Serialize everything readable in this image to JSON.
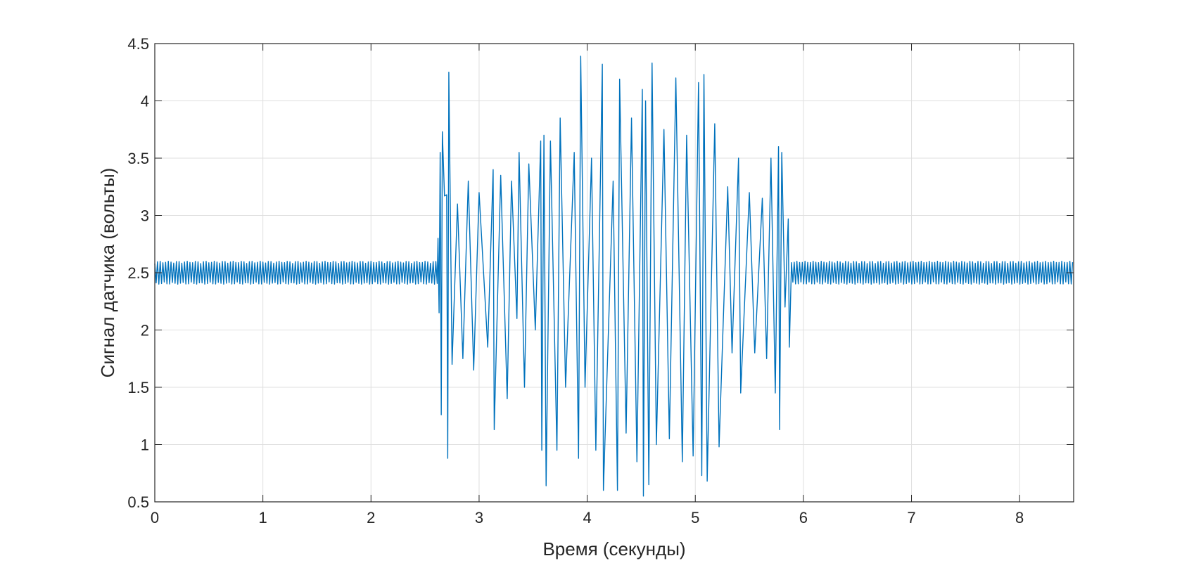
{
  "chart_data": {
    "type": "line",
    "title": "",
    "xlabel": "Время (секунды)",
    "ylabel": "Сигнал датчика (вольты)",
    "xlim": [
      0,
      8.5
    ],
    "ylim": [
      0.5,
      4.5
    ],
    "xticks": [
      0,
      1,
      2,
      3,
      4,
      5,
      6,
      7,
      8
    ],
    "xtick_labels": [
      "0",
      "1",
      "2",
      "3",
      "4",
      "5",
      "6",
      "7",
      "8"
    ],
    "yticks": [
      0.5,
      1,
      1.5,
      2,
      2.5,
      3,
      3.5,
      4,
      4.5
    ],
    "ytick_labels": [
      "0.5",
      "1",
      "1.5",
      "2",
      "2.5",
      "3",
      "3.5",
      "4",
      "4.5"
    ],
    "grid": true,
    "legend": "none",
    "series": [
      {
        "color": "#0072BD",
        "baseline_level": 2.5,
        "quiet_amplitude": 0.1,
        "burst_start": 2.62,
        "burst_end": 5.87,
        "burst_peaks": [
          [
            2.62,
            2.8
          ],
          [
            2.63,
            2.15
          ],
          [
            2.64,
            3.55
          ],
          [
            2.65,
            1.26
          ],
          [
            2.66,
            3.73
          ],
          [
            2.68,
            3.17
          ],
          [
            2.7,
            3.18
          ],
          [
            2.71,
            0.88
          ],
          [
            2.72,
            4.25
          ],
          [
            2.75,
            1.7
          ],
          [
            2.8,
            3.1
          ],
          [
            2.85,
            1.75
          ],
          [
            2.9,
            3.3
          ],
          [
            2.95,
            1.65
          ],
          [
            3.0,
            3.2
          ],
          [
            3.08,
            1.85
          ],
          [
            3.13,
            3.4
          ],
          [
            3.14,
            1.13
          ],
          [
            3.2,
            3.35
          ],
          [
            3.26,
            1.4
          ],
          [
            3.3,
            3.3
          ],
          [
            3.35,
            2.1
          ],
          [
            3.37,
            3.55
          ],
          [
            3.42,
            1.5
          ],
          [
            3.46,
            3.45
          ],
          [
            3.52,
            2.0
          ],
          [
            3.57,
            3.65
          ],
          [
            3.58,
            0.95
          ],
          [
            3.6,
            3.7
          ],
          [
            3.62,
            0.64
          ],
          [
            3.66,
            3.65
          ],
          [
            3.72,
            0.95
          ],
          [
            3.75,
            3.85
          ],
          [
            3.8,
            1.5
          ],
          [
            3.88,
            3.55
          ],
          [
            3.92,
            0.88
          ],
          [
            3.94,
            4.39
          ],
          [
            3.98,
            1.5
          ],
          [
            4.04,
            3.5
          ],
          [
            4.08,
            0.95
          ],
          [
            4.14,
            4.32
          ],
          [
            4.15,
            0.6
          ],
          [
            4.24,
            3.3
          ],
          [
            4.28,
            0.6
          ],
          [
            4.3,
            4.19
          ],
          [
            4.36,
            1.1
          ],
          [
            4.41,
            3.85
          ],
          [
            4.46,
            0.85
          ],
          [
            4.51,
            4.1
          ],
          [
            4.52,
            0.55
          ],
          [
            4.54,
            4.0
          ],
          [
            4.57,
            0.65
          ],
          [
            4.6,
            4.33
          ],
          [
            4.64,
            1.0
          ],
          [
            4.71,
            3.75
          ],
          [
            4.76,
            1.05
          ],
          [
            4.82,
            4.2
          ],
          [
            4.88,
            0.85
          ],
          [
            4.92,
            3.7
          ],
          [
            4.98,
            0.9
          ],
          [
            5.03,
            4.16
          ],
          [
            5.06,
            0.73
          ],
          [
            5.08,
            4.23
          ],
          [
            5.11,
            0.68
          ],
          [
            5.18,
            3.8
          ],
          [
            5.22,
            0.98
          ],
          [
            5.3,
            3.25
          ],
          [
            5.34,
            1.8
          ],
          [
            5.4,
            3.5
          ],
          [
            5.42,
            1.45
          ],
          [
            5.5,
            3.2
          ],
          [
            5.55,
            1.8
          ],
          [
            5.62,
            3.15
          ],
          [
            5.66,
            1.75
          ],
          [
            5.7,
            3.5
          ],
          [
            5.74,
            1.45
          ],
          [
            5.77,
            3.6
          ],
          [
            5.78,
            1.13
          ],
          [
            5.8,
            3.55
          ],
          [
            5.83,
            2.2
          ],
          [
            5.86,
            2.97
          ],
          [
            5.87,
            1.85
          ]
        ]
      }
    ]
  }
}
